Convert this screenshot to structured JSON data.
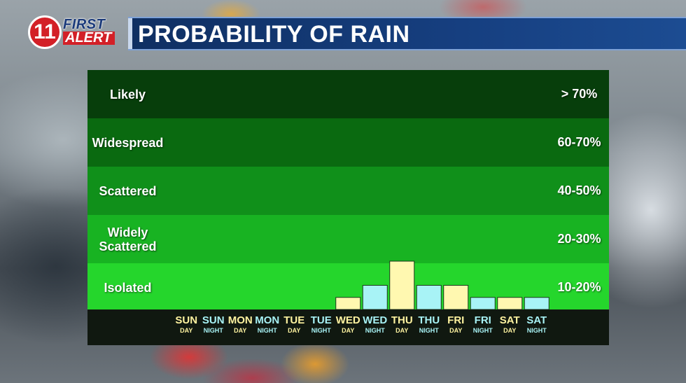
{
  "header": {
    "logo_number": "11",
    "logo_first": "FIRST",
    "logo_alert": "ALERT",
    "title": "PROBABILITY OF RAIN"
  },
  "chart_data": {
    "type": "bar",
    "title": "PROBABILITY OF RAIN",
    "ylim": [
      0,
      5
    ],
    "y_scale_note": "bands",
    "bands": [
      {
        "label": "Likely",
        "range": "> 70%",
        "color": "#073e0b"
      },
      {
        "label": "Widespread",
        "range": "60-70%",
        "color": "#0a6a10"
      },
      {
        "label": "Scattered",
        "range": "40-50%",
        "color": "#10901a"
      },
      {
        "label": "Widely\nScattered",
        "range": "20-30%",
        "color": "#18b322"
      },
      {
        "label": "Isolated",
        "range": "10-20%",
        "color": "#25d62c"
      }
    ],
    "categories": [
      {
        "day": "SUN",
        "period": "DAY"
      },
      {
        "day": "SUN",
        "period": "NIGHT"
      },
      {
        "day": "MON",
        "period": "DAY"
      },
      {
        "day": "MON",
        "period": "NIGHT"
      },
      {
        "day": "TUE",
        "period": "DAY"
      },
      {
        "day": "TUE",
        "period": "NIGHT"
      },
      {
        "day": "WED",
        "period": "DAY"
      },
      {
        "day": "WED",
        "period": "NIGHT"
      },
      {
        "day": "THU",
        "period": "DAY"
      },
      {
        "day": "THU",
        "period": "NIGHT"
      },
      {
        "day": "FRI",
        "period": "DAY"
      },
      {
        "day": "FRI",
        "period": "NIGHT"
      },
      {
        "day": "SAT",
        "period": "DAY"
      },
      {
        "day": "SAT",
        "period": "NIGHT"
      }
    ],
    "values": [
      0,
      0,
      0,
      0,
      0,
      0,
      0.25,
      0.5,
      1.0,
      0.5,
      0.5,
      0.25,
      0.25,
      0.25
    ],
    "colors": {
      "day_bar": "#fff8b0",
      "night_bar": "#a8f3f6",
      "day_label": "#fff3a0",
      "night_label": "#a8f3f6"
    }
  }
}
